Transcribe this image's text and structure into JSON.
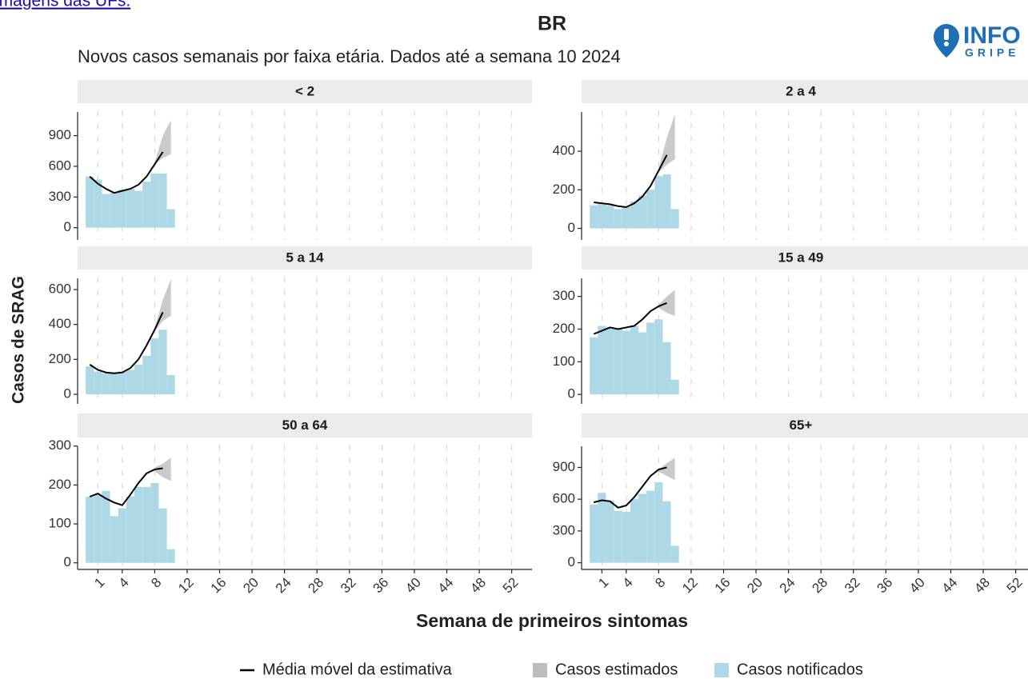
{
  "top_link": "imagens das UFs.",
  "title": "BR",
  "subtitle": "Novos casos semanais por faixa etária. Dados até a semana 10 2024",
  "logo": {
    "line1": "INFO",
    "line2": "GRIPE"
  },
  "y_axis_title": "Casos de SRAG",
  "x_axis": {
    "label": "Semana de primeiros sintomas",
    "xlim": [
      -1.5,
      54.5
    ],
    "xticks": [
      1,
      4,
      8,
      12,
      16,
      20,
      24,
      28,
      32,
      36,
      40,
      44,
      48,
      52
    ],
    "grid": true
  },
  "legend": [
    {
      "name": "Média móvel da estimativa",
      "kind": "line",
      "color": "#000000"
    },
    {
      "name": "Casos estimados",
      "kind": "ribbon",
      "color": "#bdbdbd"
    },
    {
      "name": "Casos notificados",
      "kind": "bar",
      "color": "#add8e6"
    }
  ],
  "chart_data": [
    {
      "type": "combo",
      "title": "< 2",
      "ylim": [
        -120,
        1210
      ],
      "yticks": [
        0,
        300,
        600,
        900
      ],
      "bars": {
        "x": [
          0,
          1,
          2,
          3,
          4,
          5,
          6,
          7,
          8,
          9,
          10
        ],
        "values": [
          500,
          470,
          330,
          340,
          370,
          380,
          360,
          450,
          530,
          530,
          180
        ]
      },
      "line": {
        "x": [
          0,
          1,
          2,
          3,
          4,
          5,
          6,
          7,
          8,
          9
        ],
        "values": [
          500,
          430,
          380,
          340,
          360,
          380,
          420,
          500,
          620,
          740
        ]
      },
      "ribbon": {
        "x": [
          8,
          9,
          10
        ],
        "low": [
          620,
          680,
          720
        ],
        "high": [
          640,
          900,
          1050
        ]
      }
    },
    {
      "type": "combo",
      "title": "2 a 4",
      "ylim": [
        -60,
        645
      ],
      "yticks": [
        0,
        200,
        400
      ],
      "bars": {
        "x": [
          0,
          1,
          2,
          3,
          4,
          5,
          6,
          7,
          8,
          9,
          10
        ],
        "values": [
          120,
          130,
          120,
          100,
          110,
          140,
          170,
          200,
          270,
          280,
          100
        ]
      },
      "line": {
        "x": [
          0,
          1,
          2,
          3,
          4,
          5,
          6,
          7,
          8,
          9
        ],
        "values": [
          135,
          130,
          125,
          115,
          110,
          130,
          165,
          220,
          300,
          380
        ]
      },
      "ribbon": {
        "x": [
          8,
          9,
          10
        ],
        "low": [
          290,
          330,
          360
        ],
        "high": [
          310,
          470,
          590
        ]
      }
    },
    {
      "type": "combo",
      "title": "5 a 14",
      "ylim": [
        -55,
        710
      ],
      "yticks": [
        0,
        200,
        400,
        600
      ],
      "bars": {
        "x": [
          0,
          1,
          2,
          3,
          4,
          5,
          6,
          7,
          8,
          9,
          10
        ],
        "values": [
          160,
          130,
          120,
          120,
          130,
          140,
          170,
          220,
          320,
          370,
          110
        ]
      },
      "line": {
        "x": [
          0,
          1,
          2,
          3,
          4,
          5,
          6,
          7,
          8,
          9
        ],
        "values": [
          170,
          140,
          125,
          120,
          125,
          150,
          200,
          280,
          370,
          470
        ]
      },
      "ribbon": {
        "x": [
          8,
          9,
          10
        ],
        "low": [
          360,
          420,
          450
        ],
        "high": [
          380,
          540,
          660
        ]
      }
    },
    {
      "type": "combo",
      "title": "15 a 49",
      "ylim": [
        -29,
        380
      ],
      "yticks": [
        0,
        100,
        200,
        300
      ],
      "bars": {
        "x": [
          0,
          1,
          2,
          3,
          4,
          5,
          6,
          7,
          8,
          9,
          10
        ],
        "values": [
          175,
          210,
          205,
          200,
          195,
          210,
          190,
          220,
          230,
          160,
          45
        ]
      },
      "line": {
        "x": [
          0,
          1,
          2,
          3,
          4,
          5,
          6,
          7,
          8,
          9
        ],
        "values": [
          185,
          195,
          205,
          200,
          205,
          210,
          230,
          255,
          270,
          280
        ]
      },
      "ribbon": {
        "x": [
          8,
          9,
          10
        ],
        "low": [
          265,
          250,
          240
        ],
        "high": [
          275,
          300,
          320
        ]
      }
    },
    {
      "type": "combo",
      "title": "50 a 64",
      "ylim": [
        -17,
        320
      ],
      "yticks": [
        0,
        100,
        200,
        300
      ],
      "bars": {
        "x": [
          0,
          1,
          2,
          3,
          4,
          5,
          6,
          7,
          8,
          9,
          10
        ],
        "values": [
          170,
          175,
          185,
          120,
          140,
          170,
          195,
          195,
          205,
          140,
          35
        ]
      },
      "line": {
        "x": [
          0,
          1,
          2,
          3,
          4,
          5,
          6,
          7,
          8,
          9
        ],
        "values": [
          170,
          178,
          165,
          155,
          148,
          175,
          205,
          230,
          240,
          243
        ]
      },
      "ribbon": {
        "x": [
          8,
          9,
          10
        ],
        "low": [
          235,
          220,
          210
        ],
        "high": [
          245,
          255,
          270
        ]
      }
    },
    {
      "type": "combo",
      "title": "65+",
      "ylim": [
        -63,
        1175
      ],
      "yticks": [
        0,
        300,
        600,
        900
      ],
      "bars": {
        "x": [
          0,
          1,
          2,
          3,
          4,
          5,
          6,
          7,
          8,
          9,
          10
        ],
        "values": [
          550,
          660,
          590,
          490,
          480,
          600,
          650,
          680,
          760,
          580,
          160
        ]
      },
      "line": {
        "x": [
          0,
          1,
          2,
          3,
          4,
          5,
          6,
          7,
          8,
          9
        ],
        "values": [
          570,
          590,
          580,
          520,
          540,
          620,
          720,
          820,
          880,
          900
        ]
      },
      "ribbon": {
        "x": [
          8,
          9,
          10
        ],
        "low": [
          860,
          820,
          780
        ],
        "high": [
          880,
          940,
          990
        ]
      }
    }
  ]
}
